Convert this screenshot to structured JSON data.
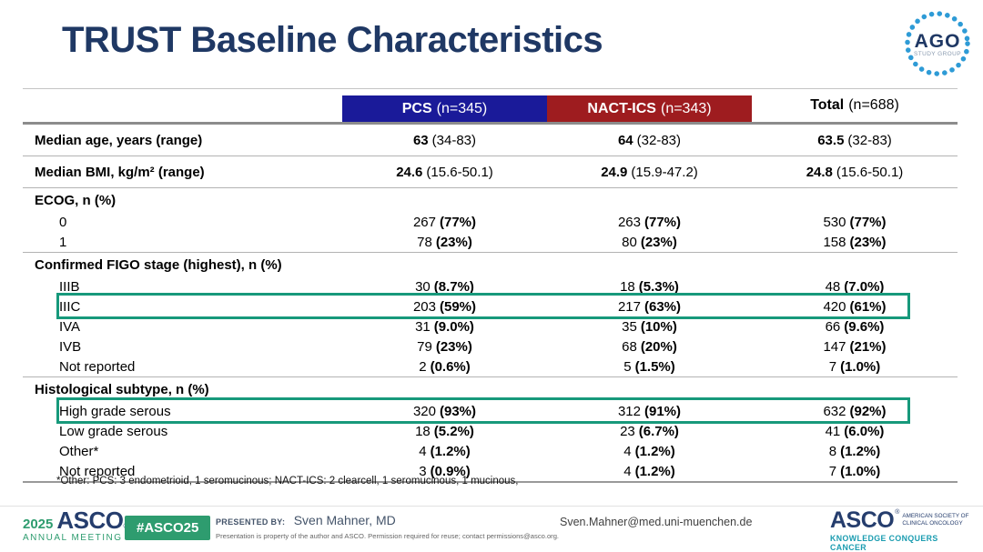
{
  "slide": {
    "title": "TRUST Baseline Characteristics"
  },
  "ago_logo": {
    "text": "AGO",
    "subtext": "STUDY GROUP"
  },
  "colors": {
    "title_navy": "#1f3864",
    "pcs_header_bg": "#1a1a99",
    "nact_header_bg": "#9e1c1f",
    "highlight_border": "#17997b",
    "footer_green": "#2e9c6f",
    "asco_navy": "#253d6d",
    "tagline_teal": "#1a9cb0",
    "ago_dot_blue": "#2e9bd6"
  },
  "table": {
    "columns": [
      {
        "label": "PCS",
        "n": "(n=345)"
      },
      {
        "label": "NACT-ICS",
        "n": "(n=343)"
      },
      {
        "label": "Total",
        "n": "(n=688)"
      }
    ],
    "rows": [
      {
        "label": "Median age, years (range)",
        "bold_label": true,
        "tall": true,
        "line": true,
        "bold": "v",
        "cells": [
          {
            "v": "63",
            "p": "(34-83)"
          },
          {
            "v": "64",
            "p": "(32-83)"
          },
          {
            "v": "63.5",
            "p": "(32-83)"
          }
        ]
      },
      {
        "label": "Median BMI, kg/m² (range)",
        "bold_label": true,
        "tall": true,
        "line": true,
        "bold": "v",
        "cells": [
          {
            "v": "24.6",
            "p": "(15.6-50.1)"
          },
          {
            "v": "24.9",
            "p": "(15.9-47.2)"
          },
          {
            "v": "24.8",
            "p": "(15.6-50.1)"
          }
        ]
      },
      {
        "label": "ECOG, n (%)",
        "bold_label": true,
        "header": true
      },
      {
        "label": "0",
        "indent": true,
        "bold": "p",
        "cells": [
          {
            "v": "267",
            "p": "(77%)"
          },
          {
            "v": "263",
            "p": "(77%)"
          },
          {
            "v": "530",
            "p": "(77%)"
          }
        ]
      },
      {
        "label": "1",
        "indent": true,
        "line": true,
        "bold": "p",
        "cells": [
          {
            "v": "78",
            "p": "(23%)"
          },
          {
            "v": "80",
            "p": "(23%)"
          },
          {
            "v": "158",
            "p": "(23%)"
          }
        ]
      },
      {
        "label": "Confirmed FIGO stage (highest), n (%)",
        "bold_label": true,
        "header": true
      },
      {
        "label": "IIIB",
        "indent": true,
        "bold": "p",
        "cells": [
          {
            "v": "30",
            "p": "(8.7%)"
          },
          {
            "v": "18",
            "p": "(5.3%)"
          },
          {
            "v": "48",
            "p": "(7.0%)"
          }
        ]
      },
      {
        "label": "IIIC",
        "indent": true,
        "highlight": true,
        "bold": "p",
        "cells": [
          {
            "v": "203",
            "p": "(59%)"
          },
          {
            "v": "217",
            "p": "(63%)"
          },
          {
            "v": "420",
            "p": "(61%)"
          }
        ]
      },
      {
        "label": "IVA",
        "indent": true,
        "bold": "p",
        "cells": [
          {
            "v": "31",
            "p": "(9.0%)"
          },
          {
            "v": "35",
            "p": "(10%)"
          },
          {
            "v": "66",
            "p": "(9.6%)"
          }
        ]
      },
      {
        "label": "IVB",
        "indent": true,
        "bold": "p",
        "cells": [
          {
            "v": "79",
            "p": "(23%)"
          },
          {
            "v": "68",
            "p": "(20%)"
          },
          {
            "v": "147",
            "p": "(21%)"
          }
        ]
      },
      {
        "label": "Not reported",
        "indent": true,
        "line": true,
        "bold": "p",
        "cells": [
          {
            "v": "2",
            "p": "(0.6%)"
          },
          {
            "v": "5",
            "p": "(1.5%)"
          },
          {
            "v": "7",
            "p": "(1.0%)"
          }
        ]
      },
      {
        "label": "Histological subtype, n (%)",
        "bold_label": true,
        "header": true
      },
      {
        "label": "High grade serous",
        "indent": true,
        "highlight": true,
        "bold": "p",
        "cells": [
          {
            "v": "320",
            "p": "(93%)"
          },
          {
            "v": "312",
            "p": "(91%)"
          },
          {
            "v": "632",
            "p": "(92%)"
          }
        ]
      },
      {
        "label": "Low grade serous",
        "indent": true,
        "bold": "p",
        "cells": [
          {
            "v": "18",
            "p": "(5.2%)"
          },
          {
            "v": "23",
            "p": "(6.7%)"
          },
          {
            "v": "41",
            "p": "(6.0%)"
          }
        ]
      },
      {
        "label": "Other*",
        "indent": true,
        "bold": "p",
        "cells": [
          {
            "v": "4",
            "p": "(1.2%)"
          },
          {
            "v": "4",
            "p": "(1.2%)"
          },
          {
            "v": "8",
            "p": "(1.2%)"
          }
        ]
      },
      {
        "label": "Not reported",
        "indent": true,
        "thick": true,
        "bold": "p",
        "cells": [
          {
            "v": "3",
            "p": "(0.9%)"
          },
          {
            "v": "4",
            "p": "(1.2%)"
          },
          {
            "v": "7",
            "p": "(1.0%)"
          }
        ]
      }
    ]
  },
  "footnote": "*Other: PCS: 3 endometrioid, 1 seromucinous; NACT-ICS: 2 clearcell, 1 seromucinous, 1 mucinous,",
  "footer": {
    "meeting": {
      "year": "2025",
      "org": "ASCO",
      "reg": "®",
      "sub": "ANNUAL MEETING"
    },
    "hashtag": "#ASCO25",
    "presented_by_label": "PRESENTED BY:",
    "presenter": "Sven Mahner, MD",
    "disclaimer": "Presentation is property of the author and ASCO. Permission required for reuse; contact permissions@asco.org.",
    "email": "Sven.Mahner@med.uni-muenchen.de",
    "asco_logo": {
      "org": "ASCO",
      "reg": "®",
      "society_line1": "AMERICAN SOCIETY OF",
      "society_line2": "CLINICAL ONCOLOGY",
      "tagline": "KNOWLEDGE CONQUERS CANCER"
    }
  }
}
